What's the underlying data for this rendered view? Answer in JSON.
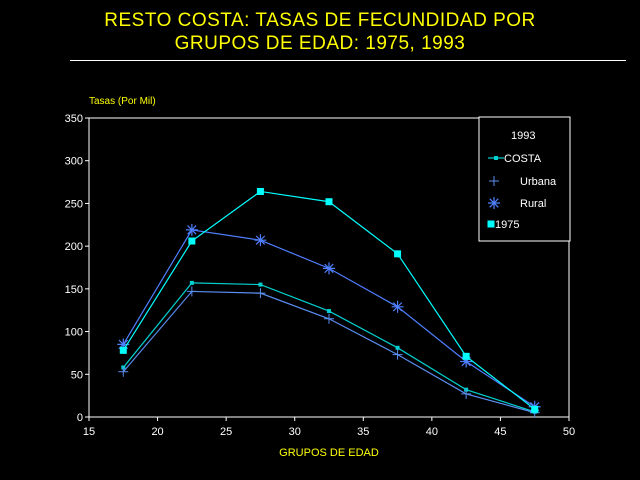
{
  "title_line1": "RESTO COSTA: TASAS DE FECUNDIDAD POR",
  "title_line2": "GRUPOS DE EDAD: 1975, 1993",
  "colors": {
    "background": "#000000",
    "title": "#ffff00",
    "axis": "#ffffff",
    "axis_labels": "#ffff00",
    "costa": "#00d0d0",
    "urbana": "#5a8ef0",
    "rural": "#4f7fff",
    "y1975": "#00ffff"
  },
  "chart_data": {
    "type": "line",
    "xlabel": "GRUPOS DE EDAD",
    "ylabel": "Tasas (Por Mil)",
    "xlim": [
      15,
      50
    ],
    "ylim": [
      0,
      350
    ],
    "xticks": [
      15,
      20,
      25,
      30,
      35,
      40,
      45,
      50
    ],
    "yticks": [
      0,
      50,
      100,
      150,
      200,
      250,
      300,
      350
    ],
    "x": [
      17.5,
      22.5,
      27.5,
      32.5,
      37.5,
      42.5,
      47.5
    ],
    "legend_title": "1993",
    "legend_position": "top-right",
    "grid": false,
    "series": [
      {
        "name": "COSTA",
        "marker": "small-square",
        "values": [
          58,
          157,
          155,
          124,
          81,
          32,
          6
        ]
      },
      {
        "name": "Urbana",
        "marker": "plus",
        "values": [
          53,
          147,
          145,
          115,
          73,
          27,
          5
        ]
      },
      {
        "name": "Rural",
        "marker": "asterisk",
        "values": [
          85,
          219,
          207,
          174,
          129,
          65,
          12
        ]
      },
      {
        "name": "1975",
        "marker": "square",
        "values": [
          78,
          206,
          264,
          252,
          191,
          71,
          9
        ]
      }
    ]
  }
}
